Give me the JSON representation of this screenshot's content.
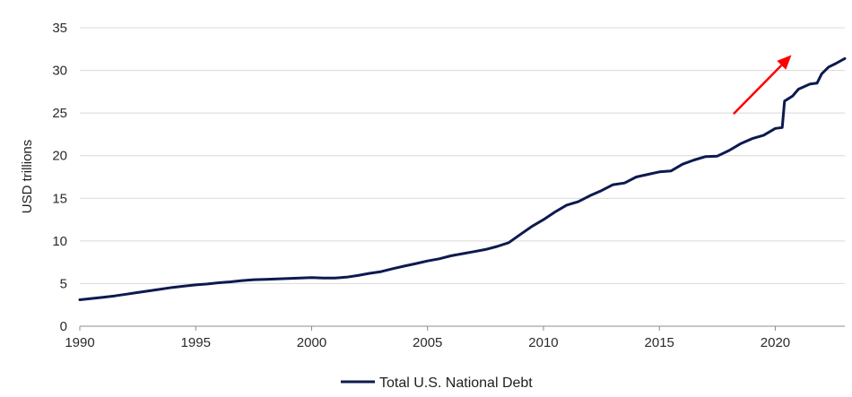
{
  "chart_data": {
    "type": "line",
    "title": "",
    "xlabel": "",
    "ylabel": "USD trillions",
    "xlim": [
      1990,
      2023
    ],
    "ylim": [
      0,
      35
    ],
    "x_ticks": [
      1990,
      1995,
      2000,
      2005,
      2010,
      2015,
      2020
    ],
    "y_ticks": [
      0,
      5,
      10,
      15,
      20,
      25,
      30,
      35
    ],
    "grid": "horizontal",
    "legend_position": "bottom",
    "series": [
      {
        "name": "Total U.S. National Debt",
        "color": "#0d1a4f",
        "points": [
          [
            1990.0,
            3.1
          ],
          [
            1990.5,
            3.25
          ],
          [
            1991.0,
            3.4
          ],
          [
            1991.5,
            3.55
          ],
          [
            1992.0,
            3.75
          ],
          [
            1992.5,
            3.95
          ],
          [
            1993.0,
            4.15
          ],
          [
            1993.5,
            4.35
          ],
          [
            1994.0,
            4.55
          ],
          [
            1994.5,
            4.7
          ],
          [
            1995.0,
            4.85
          ],
          [
            1995.5,
            4.95
          ],
          [
            1996.0,
            5.1
          ],
          [
            1996.5,
            5.2
          ],
          [
            1997.0,
            5.35
          ],
          [
            1997.5,
            5.45
          ],
          [
            1998.0,
            5.5
          ],
          [
            1998.5,
            5.55
          ],
          [
            1999.0,
            5.6
          ],
          [
            1999.5,
            5.65
          ],
          [
            2000.0,
            5.7
          ],
          [
            2000.5,
            5.65
          ],
          [
            2001.0,
            5.65
          ],
          [
            2001.5,
            5.75
          ],
          [
            2002.0,
            5.95
          ],
          [
            2002.5,
            6.2
          ],
          [
            2003.0,
            6.4
          ],
          [
            2003.5,
            6.75
          ],
          [
            2004.0,
            7.05
          ],
          [
            2004.5,
            7.35
          ],
          [
            2005.0,
            7.65
          ],
          [
            2005.5,
            7.9
          ],
          [
            2006.0,
            8.25
          ],
          [
            2006.5,
            8.5
          ],
          [
            2007.0,
            8.75
          ],
          [
            2007.5,
            9.0
          ],
          [
            2008.0,
            9.35
          ],
          [
            2008.5,
            9.8
          ],
          [
            2009.0,
            10.75
          ],
          [
            2009.5,
            11.7
          ],
          [
            2010.0,
            12.5
          ],
          [
            2010.5,
            13.4
          ],
          [
            2011.0,
            14.2
          ],
          [
            2011.5,
            14.6
          ],
          [
            2012.0,
            15.3
          ],
          [
            2012.5,
            15.9
          ],
          [
            2013.0,
            16.6
          ],
          [
            2013.5,
            16.8
          ],
          [
            2014.0,
            17.5
          ],
          [
            2014.5,
            17.8
          ],
          [
            2015.0,
            18.1
          ],
          [
            2015.5,
            18.2
          ],
          [
            2016.0,
            19.0
          ],
          [
            2016.5,
            19.5
          ],
          [
            2017.0,
            19.9
          ],
          [
            2017.5,
            19.95
          ],
          [
            2018.0,
            20.6
          ],
          [
            2018.5,
            21.4
          ],
          [
            2019.0,
            22.0
          ],
          [
            2019.5,
            22.4
          ],
          [
            2020.0,
            23.2
          ],
          [
            2020.3,
            23.3
          ],
          [
            2020.4,
            26.4
          ],
          [
            2020.75,
            27.0
          ],
          [
            2021.0,
            27.8
          ],
          [
            2021.5,
            28.4
          ],
          [
            2021.8,
            28.5
          ],
          [
            2022.0,
            29.6
          ],
          [
            2022.3,
            30.4
          ],
          [
            2022.6,
            30.8
          ],
          [
            2023.0,
            31.4
          ]
        ]
      }
    ],
    "annotations": [
      {
        "type": "arrow",
        "color": "#ff0000",
        "from": [
          2018.2,
          24.9
        ],
        "to": [
          2020.7,
          31.8
        ]
      }
    ]
  }
}
